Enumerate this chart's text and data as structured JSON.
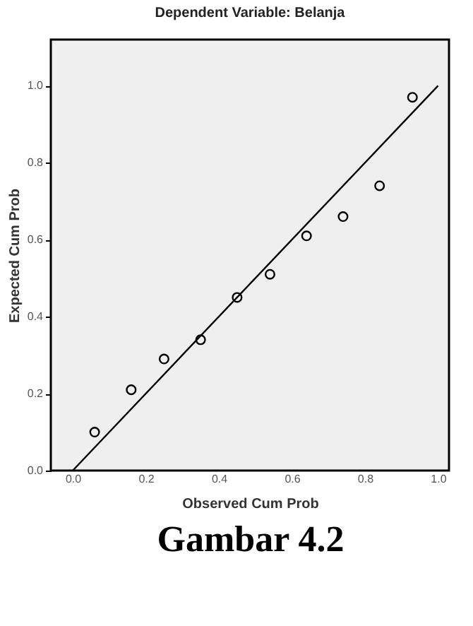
{
  "chart_data": {
    "type": "scatter",
    "title": "Dependent Variable: Belanja",
    "xlabel": "Observed Cum Prob",
    "ylabel": "Expected Cum Prob",
    "xlim": [
      -0.06,
      1.03
    ],
    "ylim": [
      0,
      1.12
    ],
    "xticks": [
      {
        "value": 0,
        "label": "0.0"
      },
      0.2,
      0.4,
      0.6,
      0.8,
      {
        "value": 1,
        "label": "1.0"
      }
    ],
    "yticks": [
      {
        "value": 0,
        "label": "0.0"
      },
      0.2,
      0.4,
      0.6,
      0.8,
      {
        "value": 1,
        "label": "1.0"
      }
    ],
    "grid": false,
    "series": [
      {
        "color": "#000000",
        "marker": "circle",
        "x": [
          0.06,
          0.16,
          0.25,
          0.35,
          0.45,
          0.54,
          0.64,
          0.74,
          0.84,
          0.93
        ],
        "values": [
          0.1,
          0.21,
          0.29,
          0.34,
          0.45,
          0.51,
          0.61,
          0.66,
          0.74,
          0.97
        ]
      },
      {
        "type": "line",
        "color": "#000000",
        "x": [
          0,
          1
        ],
        "values": [
          0,
          1
        ]
      }
    ],
    "annotations": [
      "Gambar 4.2"
    ]
  }
}
